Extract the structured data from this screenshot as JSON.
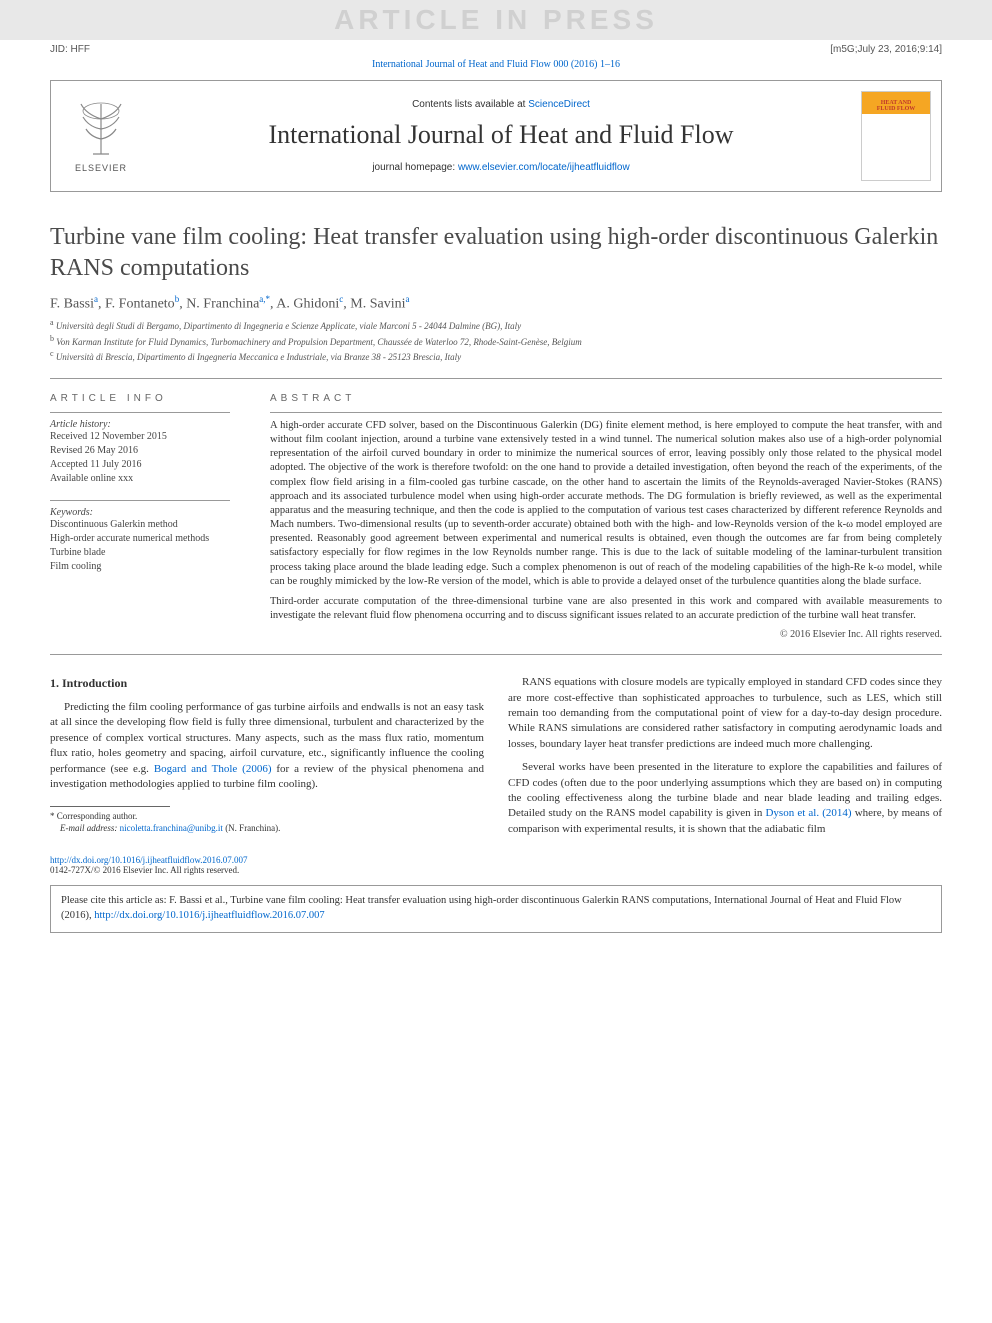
{
  "banner": {
    "text": "ARTICLE IN PRESS"
  },
  "top_meta": {
    "jid": "JID: HFF",
    "stamp": "[m5G;July 23, 2016;9:14]"
  },
  "journal_link_text": "International Journal of Heat and Fluid Flow 000 (2016) 1–16",
  "header": {
    "sciencedirect_prefix": "Contents lists available at ",
    "sciencedirect": "ScienceDirect",
    "journal_name": "International Journal of Heat and Fluid Flow",
    "homepage_prefix": "journal homepage: ",
    "homepage_url": "www.elsevier.com/locate/ijheatfluidflow",
    "elsevier_label": "ELSEVIER",
    "cover_line1": "HEAT AND",
    "cover_line2": "FLUID FLOW"
  },
  "title": "Turbine vane film cooling: Heat transfer evaluation using high-order discontinuous Galerkin RANS computations",
  "authors_html": "F. Bassi<sup>a</sup>, F. Fontaneto<sup>b</sup>, N. Franchina<sup>a,*</sup>, A. Ghidoni<sup>c</sup>, M. Savini<sup>a</sup>",
  "affiliations": [
    {
      "sup": "a",
      "text": "Università degli Studi di Bergamo, Dipartimento di Ingegneria e Scienze Applicate, viale Marconi 5 - 24044 Dalmine (BG), Italy"
    },
    {
      "sup": "b",
      "text": "Von Karman Institute for Fluid Dynamics, Turbomachinery and Propulsion Department, Chaussée de Waterloo 72, Rhode-Saint-Genèse, Belgium"
    },
    {
      "sup": "c",
      "text": "Università di Brescia, Dipartimento di Ingegneria Meccanica e Industriale, via Branze 38 - 25123 Brescia, Italy"
    }
  ],
  "article_info": {
    "heading": "ARTICLE INFO",
    "history_label": "Article history:",
    "received": "Received 12 November 2015",
    "revised": "Revised 26 May 2016",
    "accepted": "Accepted 11 July 2016",
    "online": "Available online xxx",
    "keywords_label": "Keywords:",
    "keywords": [
      "Discontinuous Galerkin method",
      "High-order accurate numerical methods",
      "Turbine blade",
      "Film cooling"
    ]
  },
  "abstract": {
    "heading": "ABSTRACT",
    "p1": "A high-order accurate CFD solver, based on the Discontinuous Galerkin (DG) finite element method, is here employed to compute the heat transfer, with and without film coolant injection, around a turbine vane extensively tested in a wind tunnel. The numerical solution makes also use of a high-order polynomial representation of the airfoil curved boundary in order to minimize the numerical sources of error, leaving possibly only those related to the physical model adopted. The objective of the work is therefore twofold: on the one hand to provide a detailed investigation, often beyond the reach of the experiments, of the complex flow field arising in a film-cooled gas turbine cascade, on the other hand to ascertain the limits of the Reynolds-averaged Navier-Stokes (RANS) approach and its associated turbulence model when using high-order accurate methods. The DG formulation is briefly reviewed, as well as the experimental apparatus and the measuring technique, and then the code is applied to the computation of various test cases characterized by different reference Reynolds and Mach numbers. Two-dimensional results (up to seventh-order accurate) obtained both with the high- and low-Reynolds version of the k-ω model employed are presented. Reasonably good agreement between experimental and numerical results is obtained, even though the outcomes are far from being completely satisfactory especially for flow regimes in the low Reynolds number range. This is due to the lack of suitable modeling of the laminar-turbulent transition process taking place around the blade leading edge. Such a complex phenomenon is out of reach of the modeling capabilities of the high-Re k-ω model, while can be roughly mimicked by the low-Re version of the model, which is able to provide a delayed onset of the turbulence quantities along the blade surface.",
    "p2": "Third-order accurate computation of the three-dimensional turbine vane are also presented in this work and compared with available measurements to investigate the relevant fluid flow phenomena occurring and to discuss significant issues related to an accurate prediction of the turbine wall heat transfer.",
    "copyright": "© 2016 Elsevier Inc. All rights reserved."
  },
  "intro": {
    "heading": "1. Introduction",
    "left_p1_pre": "Predicting the film cooling performance of gas turbine airfoils and endwalls is not an easy task at all since the developing flow field is fully three dimensional, turbulent and characterized by the presence of complex vortical structures. Many aspects, such as the mass flux ratio, momentum flux ratio, holes geometry and spacing, airfoil curvature, etc., significantly influence the cooling performance (see e.g. ",
    "left_p1_link": "Bogard and Thole (2006)",
    "left_p1_post": " for a review of the physical phenomena and investigation methodologies applied to turbine film cooling).",
    "right_p1": "RANS equations with closure models are typically employed in standard CFD codes since they are more cost-effective than sophisticated approaches to turbulence, such as LES, which still remain too demanding from the computational point of view for a day-to-day design procedure. While RANS simulations are considered rather satisfactory in computing aerodynamic loads and losses, boundary layer heat transfer predictions are indeed much more challenging.",
    "right_p2_pre": "Several works have been presented in the literature to explore the capabilities and failures of CFD codes (often due to the poor underlying assumptions which they are based on) in computing the cooling effectiveness along the turbine blade and near blade leading and trailing edges. Detailed study on the RANS model capability is given in ",
    "right_p2_link": "Dyson et al. (2014)",
    "right_p2_post": " where, by means of comparison with experimental results, it is shown that the adiabatic film"
  },
  "footnote": {
    "corr_label": "* Corresponding author.",
    "email_label": "E-mail address: ",
    "email": "nicoletta.franchina@unibg.it",
    "email_suffix": " (N. Franchina)."
  },
  "doi": {
    "url": "http://dx.doi.org/10.1016/j.ijheatfluidflow.2016.07.007",
    "issn_line": "0142-727X/© 2016 Elsevier Inc. All rights reserved."
  },
  "cite_box": {
    "text_pre": "Please cite this article as: F. Bassi et al., Turbine vane film cooling: Heat transfer evaluation using high-order discontinuous Galerkin RANS computations, International Journal of Heat and Fluid Flow (2016), ",
    "url": "http://dx.doi.org/10.1016/j.ijheatfluidflow.2016.07.007"
  },
  "colors": {
    "link": "#0066cc",
    "banner_bg": "#e8e8e8",
    "banner_text": "#d0d0d0",
    "text": "#333333",
    "cover_orange": "#f5a623",
    "cover_red": "#c0392b"
  }
}
